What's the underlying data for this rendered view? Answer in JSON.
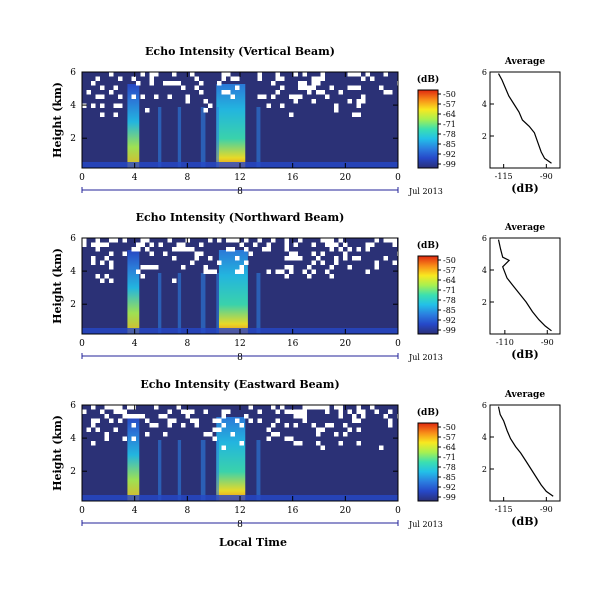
{
  "colorbar": {
    "unit": "(dB)",
    "ticks": [
      "-50",
      "-57",
      "-64",
      "-71",
      "-78",
      "-85",
      "-92",
      "-99"
    ],
    "colors": [
      "#2a2f78",
      "#2648c8",
      "#2b7fe0",
      "#22c0e8",
      "#3be0b0",
      "#a8f050",
      "#f8e820",
      "#f88c18",
      "#e02810"
    ]
  },
  "colors": {
    "background_fill": "#2b3176",
    "missing": "#ffffff"
  },
  "date_label": "Jul 2013",
  "xlabel": "Local Time",
  "chart_data": [
    {
      "type": "heatmap",
      "title": "Echo Intensity (Vertical Beam)",
      "ylabel": "Height (km)",
      "x_ticks": [
        "0",
        "4",
        "8",
        "12",
        "16",
        "20",
        "0"
      ],
      "y_ticks": [
        "6",
        "4",
        "2"
      ],
      "day_label": "8",
      "xlim": [
        0,
        24
      ],
      "ylim": [
        0.2,
        6
      ],
      "clim": [
        -99,
        -50
      ],
      "highlights": [
        {
          "x_center": 3.9,
          "width": 0.9,
          "peak_db": -64
        },
        {
          "x_center": 11.3,
          "width": 2.2,
          "peak_db": -50
        }
      ],
      "average_profile": {
        "title": "Average",
        "xlabel": "(dB)",
        "x_ticks": [
          "-115",
          "-90"
        ],
        "y_ticks": [
          "6",
          "4",
          "2"
        ],
        "xlim": [
          -123,
          -82
        ],
        "ylim": [
          0,
          6
        ],
        "points": [
          [
            -118,
            5.9
          ],
          [
            -116,
            5.5
          ],
          [
            -114,
            5.0
          ],
          [
            -112,
            4.5
          ],
          [
            -109,
            4.0
          ],
          [
            -106,
            3.5
          ],
          [
            -104,
            3.0
          ],
          [
            -100,
            2.6
          ],
          [
            -97,
            2.2
          ],
          [
            -95,
            1.6
          ],
          [
            -93,
            1.0
          ],
          [
            -91,
            0.6
          ],
          [
            -87,
            0.3
          ]
        ]
      }
    },
    {
      "type": "heatmap",
      "title": "Echo Intensity (Northward Beam)",
      "ylabel": "Height (km)",
      "x_ticks": [
        "0",
        "4",
        "8",
        "12",
        "16",
        "20",
        "0"
      ],
      "y_ticks": [
        "6",
        "4",
        "2"
      ],
      "day_label": "8",
      "xlim": [
        0,
        24
      ],
      "ylim": [
        0.2,
        6
      ],
      "clim": [
        -99,
        -50
      ],
      "highlights": [
        {
          "x_center": 3.9,
          "width": 0.9,
          "peak_db": -64
        },
        {
          "x_center": 11.5,
          "width": 2.2,
          "peak_db": -50
        }
      ],
      "average_profile": {
        "title": "Average",
        "xlabel": "(dB)",
        "x_ticks": [
          "-110",
          "-90"
        ],
        "y_ticks": [
          "6",
          "4",
          "2"
        ],
        "xlim": [
          -117,
          -84
        ],
        "ylim": [
          0,
          6
        ],
        "points": [
          [
            -113,
            5.9
          ],
          [
            -112,
            5.3
          ],
          [
            -111,
            4.8
          ],
          [
            -108,
            4.6
          ],
          [
            -111,
            4.2
          ],
          [
            -109,
            3.5
          ],
          [
            -106,
            3.0
          ],
          [
            -103,
            2.5
          ],
          [
            -100,
            2.0
          ],
          [
            -97,
            1.4
          ],
          [
            -94,
            0.9
          ],
          [
            -91,
            0.5
          ],
          [
            -88,
            0.2
          ]
        ]
      }
    },
    {
      "type": "heatmap",
      "title": "Echo Intensity (Eastward Beam)",
      "ylabel": "Height (km)",
      "x_ticks": [
        "0",
        "4",
        "8",
        "12",
        "16",
        "20",
        "0"
      ],
      "y_ticks": [
        "6",
        "4",
        "2"
      ],
      "day_label": "8",
      "xlim": [
        0,
        24
      ],
      "ylim": [
        0.2,
        6
      ],
      "clim": [
        -99,
        -50
      ],
      "highlights": [
        {
          "x_center": 3.9,
          "width": 0.9,
          "peak_db": -64
        },
        {
          "x_center": 11.3,
          "width": 2.2,
          "peak_db": -50
        }
      ],
      "average_profile": {
        "title": "Average",
        "xlabel": "(dB)",
        "x_ticks": [
          "-115",
          "-90"
        ],
        "y_ticks": [
          "6",
          "4",
          "2"
        ],
        "xlim": [
          -123,
          -82
        ],
        "ylim": [
          0,
          6
        ],
        "points": [
          [
            -118,
            5.9
          ],
          [
            -117,
            5.4
          ],
          [
            -115,
            5.0
          ],
          [
            -113,
            4.4
          ],
          [
            -111,
            3.9
          ],
          [
            -108,
            3.4
          ],
          [
            -105,
            3.0
          ],
          [
            -102,
            2.5
          ],
          [
            -99,
            2.0
          ],
          [
            -96,
            1.5
          ],
          [
            -93,
            1.0
          ],
          [
            -90,
            0.6
          ],
          [
            -86,
            0.3
          ]
        ]
      }
    }
  ]
}
